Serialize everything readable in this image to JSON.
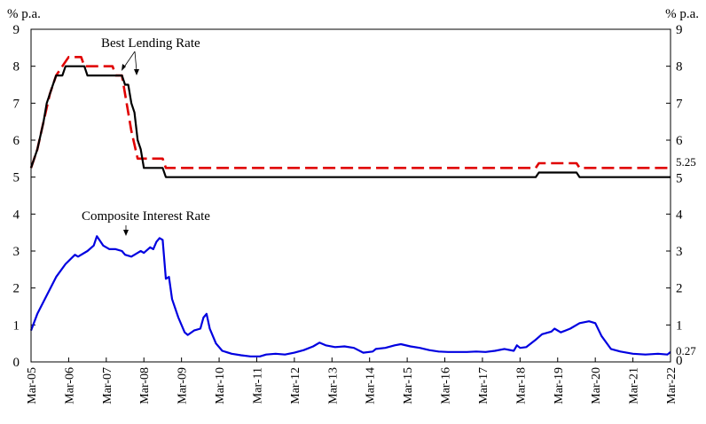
{
  "chart_data": {
    "type": "line",
    "y_unit_left": "% p.a.",
    "y_unit_right": "% p.a.",
    "ylim": [
      0,
      9
    ],
    "yticks": [
      0,
      1,
      2,
      3,
      4,
      5,
      6,
      7,
      8,
      9
    ],
    "x_range": [
      "2005-03",
      "2022-03"
    ],
    "x_ticks": [
      "Mar-05",
      "Mar-06",
      "Mar-07",
      "Mar-08",
      "Mar-09",
      "Mar-10",
      "Mar-11",
      "Mar-12",
      "Mar-13",
      "Mar-14",
      "Mar-15",
      "Mar-16",
      "Mar-17",
      "Mar-18",
      "Mar-19",
      "Mar-20",
      "Mar-21",
      "Mar-22"
    ],
    "annotations": {
      "best_lending": "Best Lending Rate",
      "composite": "Composite Interest Rate",
      "end_best_lending": "5.25",
      "end_composite": "0.27"
    },
    "grid": false,
    "series": [
      {
        "key": "best_lending_upper",
        "color": "#e00000",
        "style": "dashed",
        "points": [
          [
            "2005-03",
            5.25
          ],
          [
            "2005-05",
            5.75
          ],
          [
            "2005-07",
            6.5
          ],
          [
            "2005-09",
            7.25
          ],
          [
            "2005-11",
            7.75
          ],
          [
            "2006-01",
            8.0
          ],
          [
            "2006-03",
            8.25
          ],
          [
            "2006-05",
            8.25
          ],
          [
            "2006-07",
            8.25
          ],
          [
            "2006-08",
            8.0
          ],
          [
            "2007-03",
            8.0
          ],
          [
            "2007-05",
            8.0
          ],
          [
            "2007-06",
            7.75
          ],
          [
            "2007-08",
            7.75
          ],
          [
            "2007-09",
            7.25
          ],
          [
            "2007-11",
            6.25
          ],
          [
            "2008-01",
            5.5
          ],
          [
            "2008-06",
            5.5
          ],
          [
            "2008-07",
            5.5
          ],
          [
            "2008-09",
            5.5
          ],
          [
            "2008-10",
            5.25
          ],
          [
            "2018-08",
            5.25
          ],
          [
            "2018-09",
            5.375
          ],
          [
            "2019-09",
            5.375
          ],
          [
            "2019-10",
            5.25
          ],
          [
            "2022-03",
            5.25
          ]
        ]
      },
      {
        "key": "best_lending_lower",
        "color": "#000000",
        "style": "solid",
        "points": [
          [
            "2005-03",
            5.25
          ],
          [
            "2005-05",
            5.75
          ],
          [
            "2005-07",
            6.5
          ],
          [
            "2005-08",
            7.0
          ],
          [
            "2005-10",
            7.5
          ],
          [
            "2005-11",
            7.75
          ],
          [
            "2006-01",
            7.75
          ],
          [
            "2006-02",
            8.0
          ],
          [
            "2006-08",
            8.0
          ],
          [
            "2006-09",
            7.75
          ],
          [
            "2007-08",
            7.75
          ],
          [
            "2007-09",
            7.5
          ],
          [
            "2007-10",
            7.5
          ],
          [
            "2007-11",
            7.0
          ],
          [
            "2007-12",
            6.75
          ],
          [
            "2008-01",
            6.0
          ],
          [
            "2008-02",
            5.75
          ],
          [
            "2008-03",
            5.25
          ],
          [
            "2008-09",
            5.25
          ],
          [
            "2008-10",
            5.0
          ],
          [
            "2018-08",
            5.0
          ],
          [
            "2018-09",
            5.125
          ],
          [
            "2019-09",
            5.125
          ],
          [
            "2019-10",
            5.0
          ],
          [
            "2022-03",
            5.0
          ]
        ]
      },
      {
        "key": "composite",
        "color": "#0000e0",
        "style": "solid",
        "points": [
          [
            "2005-03",
            0.85
          ],
          [
            "2005-05",
            1.3
          ],
          [
            "2005-08",
            1.8
          ],
          [
            "2005-11",
            2.3
          ],
          [
            "2006-02",
            2.65
          ],
          [
            "2006-05",
            2.9
          ],
          [
            "2006-06",
            2.85
          ],
          [
            "2006-09",
            3.0
          ],
          [
            "2006-11",
            3.15
          ],
          [
            "2006-12",
            3.4
          ],
          [
            "2007-02",
            3.15
          ],
          [
            "2007-04",
            3.05
          ],
          [
            "2007-06",
            3.05
          ],
          [
            "2007-08",
            3.0
          ],
          [
            "2007-09",
            2.9
          ],
          [
            "2007-11",
            2.85
          ],
          [
            "2008-01",
            2.95
          ],
          [
            "2008-02",
            3.0
          ],
          [
            "2008-03",
            2.95
          ],
          [
            "2008-05",
            3.1
          ],
          [
            "2008-06",
            3.05
          ],
          [
            "2008-07",
            3.25
          ],
          [
            "2008-08",
            3.35
          ],
          [
            "2008-09",
            3.3
          ],
          [
            "2008-10",
            2.25
          ],
          [
            "2008-11",
            2.3
          ],
          [
            "2008-12",
            1.7
          ],
          [
            "2009-02",
            1.2
          ],
          [
            "2009-04",
            0.8
          ],
          [
            "2009-05",
            0.73
          ],
          [
            "2009-07",
            0.85
          ],
          [
            "2009-09",
            0.9
          ],
          [
            "2009-10",
            1.2
          ],
          [
            "2009-11",
            1.3
          ],
          [
            "2009-12",
            0.9
          ],
          [
            "2010-02",
            0.5
          ],
          [
            "2010-04",
            0.3
          ],
          [
            "2010-07",
            0.22
          ],
          [
            "2010-10",
            0.18
          ],
          [
            "2011-01",
            0.15
          ],
          [
            "2011-04",
            0.15
          ],
          [
            "2011-06",
            0.2
          ],
          [
            "2011-09",
            0.22
          ],
          [
            "2011-12",
            0.2
          ],
          [
            "2012-03",
            0.25
          ],
          [
            "2012-06",
            0.32
          ],
          [
            "2012-09",
            0.42
          ],
          [
            "2012-11",
            0.52
          ],
          [
            "2013-01",
            0.45
          ],
          [
            "2013-04",
            0.4
          ],
          [
            "2013-07",
            0.42
          ],
          [
            "2013-10",
            0.38
          ],
          [
            "2014-01",
            0.25
          ],
          [
            "2014-04",
            0.28
          ],
          [
            "2014-05",
            0.35
          ],
          [
            "2014-08",
            0.38
          ],
          [
            "2014-11",
            0.45
          ],
          [
            "2015-01",
            0.48
          ],
          [
            "2015-04",
            0.42
          ],
          [
            "2015-07",
            0.38
          ],
          [
            "2015-10",
            0.32
          ],
          [
            "2016-01",
            0.28
          ],
          [
            "2016-04",
            0.27
          ],
          [
            "2016-07",
            0.27
          ],
          [
            "2016-10",
            0.27
          ],
          [
            "2017-01",
            0.28
          ],
          [
            "2017-04",
            0.27
          ],
          [
            "2017-07",
            0.3
          ],
          [
            "2017-10",
            0.35
          ],
          [
            "2018-01",
            0.3
          ],
          [
            "2018-02",
            0.45
          ],
          [
            "2018-03",
            0.38
          ],
          [
            "2018-05",
            0.4
          ],
          [
            "2018-08",
            0.6
          ],
          [
            "2018-10",
            0.75
          ],
          [
            "2019-01",
            0.82
          ],
          [
            "2019-02",
            0.9
          ],
          [
            "2019-04",
            0.8
          ],
          [
            "2019-07",
            0.9
          ],
          [
            "2019-10",
            1.05
          ],
          [
            "2020-01",
            1.1
          ],
          [
            "2020-03",
            1.05
          ],
          [
            "2020-05",
            0.7
          ],
          [
            "2020-08",
            0.35
          ],
          [
            "2020-11",
            0.28
          ],
          [
            "2021-03",
            0.22
          ],
          [
            "2021-07",
            0.2
          ],
          [
            "2021-11",
            0.22
          ],
          [
            "2022-02",
            0.2
          ],
          [
            "2022-03",
            0.27
          ]
        ]
      }
    ]
  }
}
